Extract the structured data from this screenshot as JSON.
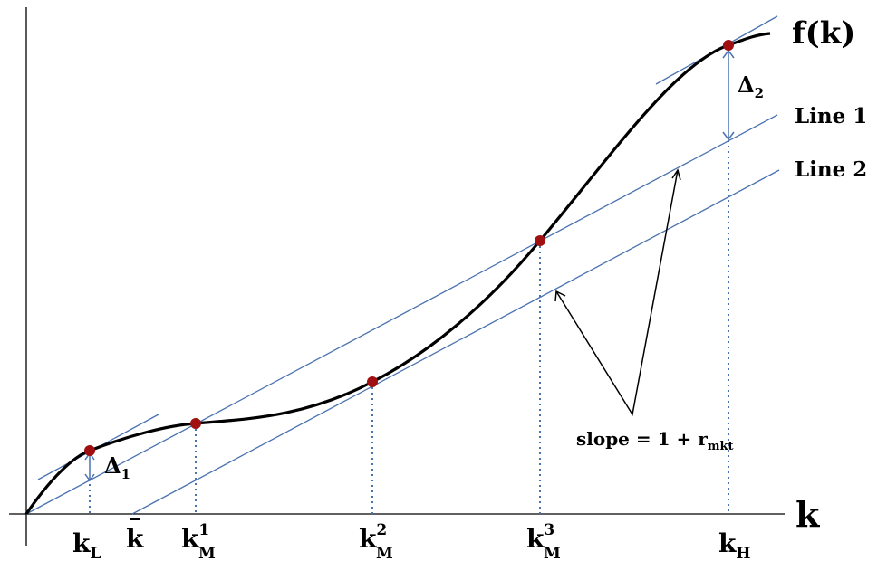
{
  "colors": {
    "curve": "#000000",
    "line": "#4a72b0",
    "point": "#a01010",
    "axis": "#000000",
    "guide": "#4a72b0"
  },
  "labels": {
    "curve": "f(k)",
    "x_axis": "k",
    "line1": "Line 1",
    "line2": "Line 2",
    "delta1_symbol": "Δ",
    "delta1_sub": "1",
    "delta2_symbol": "Δ",
    "delta2_sub": "2",
    "slope_text": "slope = 1 + r",
    "slope_sub": "mkt"
  },
  "ticks": {
    "kL": {
      "base": "k",
      "sub": "L"
    },
    "kbar": {
      "base": "k"
    },
    "kM1": {
      "base": "k",
      "sup": "1",
      "sub": "M"
    },
    "kM2": {
      "base": "k",
      "sup": "2",
      "sub": "M"
    },
    "kM3": {
      "base": "k",
      "sup": "3",
      "sub": "M"
    },
    "kH": {
      "base": "k",
      "sub": "H"
    }
  }
}
